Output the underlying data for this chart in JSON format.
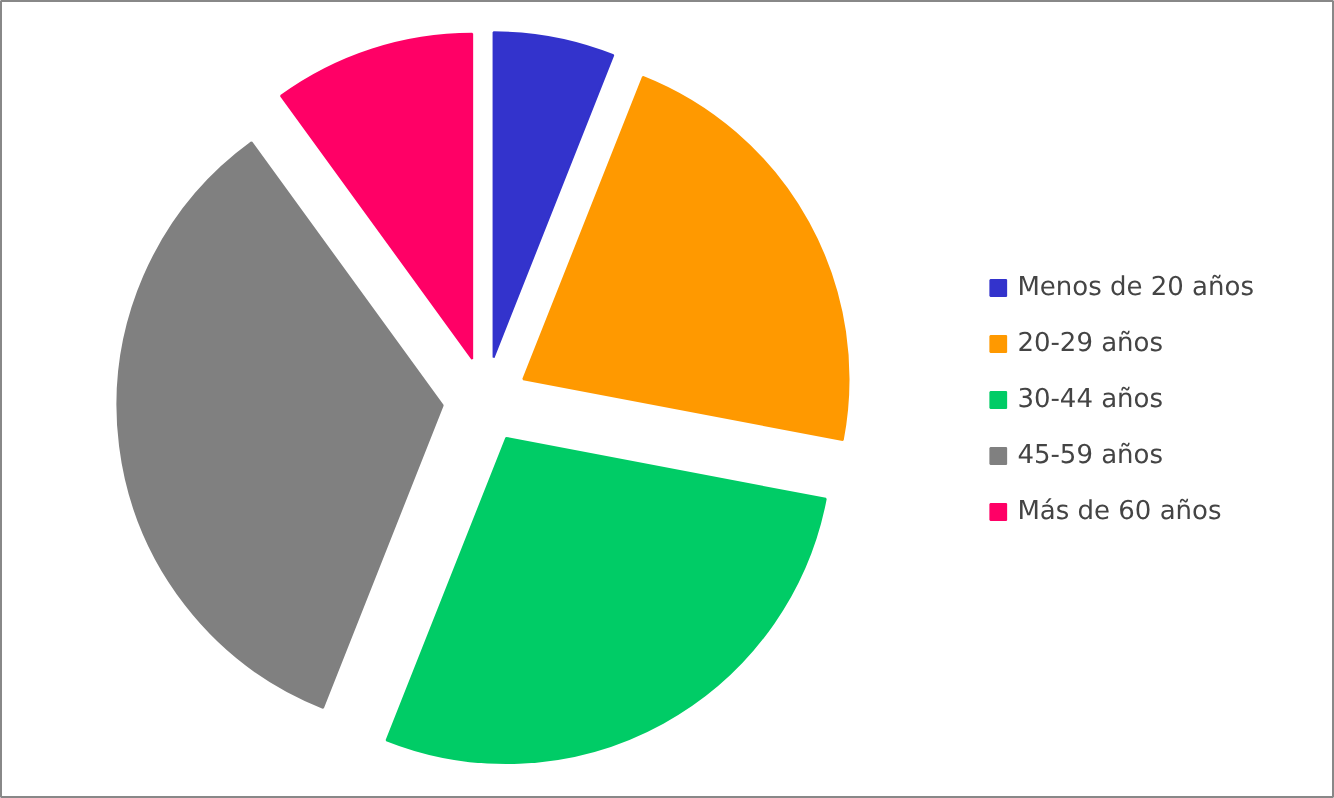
{
  "chart_data": {
    "type": "pie",
    "categories": [
      "Menos de 20 años",
      "20-29 años",
      "30-44 años",
      "45-59 años",
      "Más de 60 años"
    ],
    "values": [
      6,
      22,
      28,
      34,
      10
    ],
    "colors": [
      "#3333cc",
      "#ff9900",
      "#00cc66",
      "#808080",
      "#ff0066"
    ],
    "legend": "right"
  }
}
